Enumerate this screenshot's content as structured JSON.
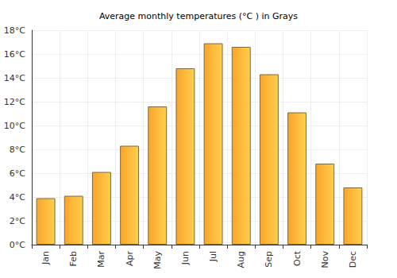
{
  "chart_data": {
    "type": "bar",
    "title": "Average monthly temperatures (°C ) in Grays",
    "categories": [
      "Jan",
      "Feb",
      "Mar",
      "Apr",
      "May",
      "Jun",
      "Jul",
      "Aug",
      "Sep",
      "Oct",
      "Nov",
      "Dec"
    ],
    "values": [
      3.9,
      4.1,
      6.1,
      8.3,
      11.6,
      14.8,
      16.9,
      16.6,
      14.3,
      11.1,
      6.8,
      4.8
    ],
    "color": "#fba52a",
    "ylim": [
      0,
      18
    ],
    "yticks": [
      {
        "value": 0,
        "label": "0°C"
      },
      {
        "value": 2,
        "label": "2°C"
      },
      {
        "value": 4,
        "label": "4°C"
      },
      {
        "value": 6,
        "label": "6°C"
      },
      {
        "value": 8,
        "label": "8°C"
      },
      {
        "value": 10,
        "label": "10°C"
      },
      {
        "value": 12,
        "label": "12°C"
      },
      {
        "value": 14,
        "label": "14°C"
      },
      {
        "value": 16,
        "label": "16°C"
      },
      {
        "value": 18,
        "label": "18°C"
      }
    ],
    "grid": true
  }
}
